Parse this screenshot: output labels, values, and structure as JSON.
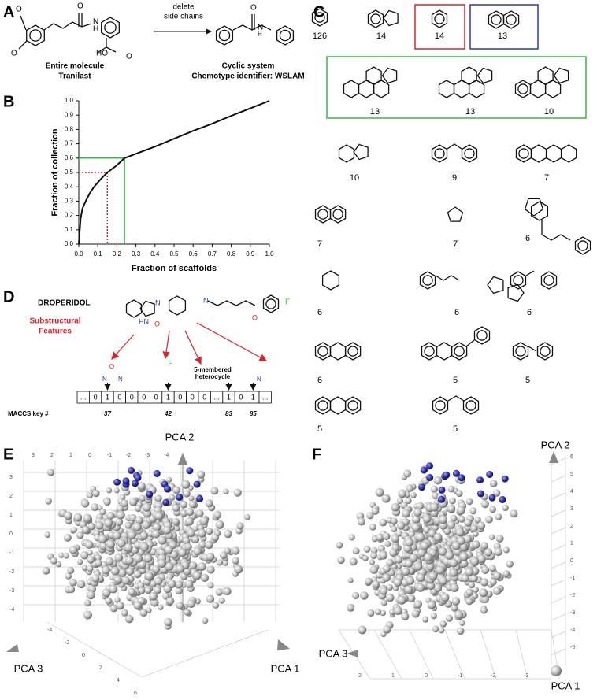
{
  "chart_data": {
    "type": "line",
    "panel_label": "B",
    "xlabel": "Fraction of scaffolds",
    "ylabel": "Fraction of collection",
    "x": [
      0,
      0.01,
      0.02,
      0.04,
      0.06,
      0.08,
      0.1,
      0.12,
      0.15,
      0.2,
      0.24,
      0.3,
      0.4,
      0.5,
      0.6,
      0.7,
      0.8,
      0.9,
      1.0
    ],
    "series": [
      {
        "color": "#111111",
        "values": [
          0,
          0.18,
          0.25,
          0.31,
          0.36,
          0.4,
          0.43,
          0.46,
          0.5,
          0.55,
          0.6,
          0.63,
          0.68,
          0.735,
          0.79,
          0.84,
          0.895,
          0.947,
          1.0
        ]
      }
    ],
    "markers": [
      {
        "x": 0.24,
        "y": 0.6,
        "color": "#3cb54a",
        "style": "solid"
      },
      {
        "x": 0.15,
        "y": 0.5,
        "color": "#d8232a",
        "style": "dotted"
      }
    ],
    "xlim": [
      0,
      1
    ],
    "ylim": [
      0,
      1
    ],
    "xticks": [
      {
        "value": 0,
        "label": "0.0"
      },
      0.1,
      0.2,
      0.3,
      0.4,
      0.5,
      0.6,
      0.7,
      0.8,
      0.9,
      {
        "value": 1,
        "label": "1.0"
      }
    ],
    "yticks": [
      {
        "value": 0,
        "label": "0.0"
      },
      0.1,
      0.2,
      0.3,
      0.4,
      0.5,
      0.6,
      0.7,
      0.8,
      0.9,
      {
        "value": 1,
        "label": "1.0"
      }
    ]
  },
  "panel_a": {
    "label": "A",
    "atoms": [
      "O",
      "O",
      "O",
      "N",
      "H",
      "HO",
      "O",
      "O",
      "N",
      "H"
    ],
    "left_caption": [
      "Entire molecule",
      "Tranilast"
    ],
    "arrow_text": [
      "delete",
      "side chains"
    ],
    "right_caption": [
      "Cyclic system",
      "Chemotype identifier: WSLAM"
    ]
  },
  "panel_c": {
    "label": "C",
    "counts": [
      126,
      14,
      14,
      13,
      13,
      13,
      10,
      10,
      9,
      7,
      7,
      7,
      6,
      6,
      6,
      6,
      6,
      5,
      5,
      5,
      5
    ]
  },
  "panel_d": {
    "label": "D",
    "title": "DROPERIDOL",
    "atoms": [
      "N",
      "N",
      "HN",
      "O",
      "O",
      "F"
    ],
    "features_label": [
      "Substructural",
      "Features"
    ],
    "feature_atoms": [
      "O",
      "N",
      "N",
      "F",
      "N"
    ],
    "ring_label": [
      "5-membered",
      "heterocycle"
    ],
    "bits": [
      "...",
      "0",
      "1",
      "0",
      "0",
      "0",
      "0",
      "1",
      "0",
      "0",
      "0",
      "...",
      "1",
      "0",
      "1",
      "..."
    ],
    "key_label": "MACCS key #",
    "keys": [
      "37",
      "42",
      "83",
      "85"
    ]
  },
  "panel_e": {
    "label": "E",
    "axes": [
      "PCA 2",
      "PCA 3",
      "PCA 1"
    ],
    "left_ticks": [
      "3",
      "2",
      "1",
      "0",
      "-1",
      "-2",
      "-3",
      "-4"
    ],
    "top_ticks": [
      "3",
      "2",
      "1",
      "0",
      "-1",
      "-2",
      "-3",
      "-4"
    ],
    "bottom_ticks": [
      "-4",
      "-2",
      "0",
      "2",
      "4",
      "6"
    ]
  },
  "panel_f": {
    "label": "F",
    "axes": [
      "PCA 2",
      "PCA 3",
      "PCA 1"
    ],
    "right_ticks": [
      "6",
      "5",
      "4",
      "3",
      "2",
      "1",
      "0",
      "-1",
      "-2",
      "-3",
      "-4",
      "-5"
    ],
    "bottom_ticks": [
      "2",
      "1",
      "0",
      "-1",
      "-2",
      "-3"
    ]
  }
}
